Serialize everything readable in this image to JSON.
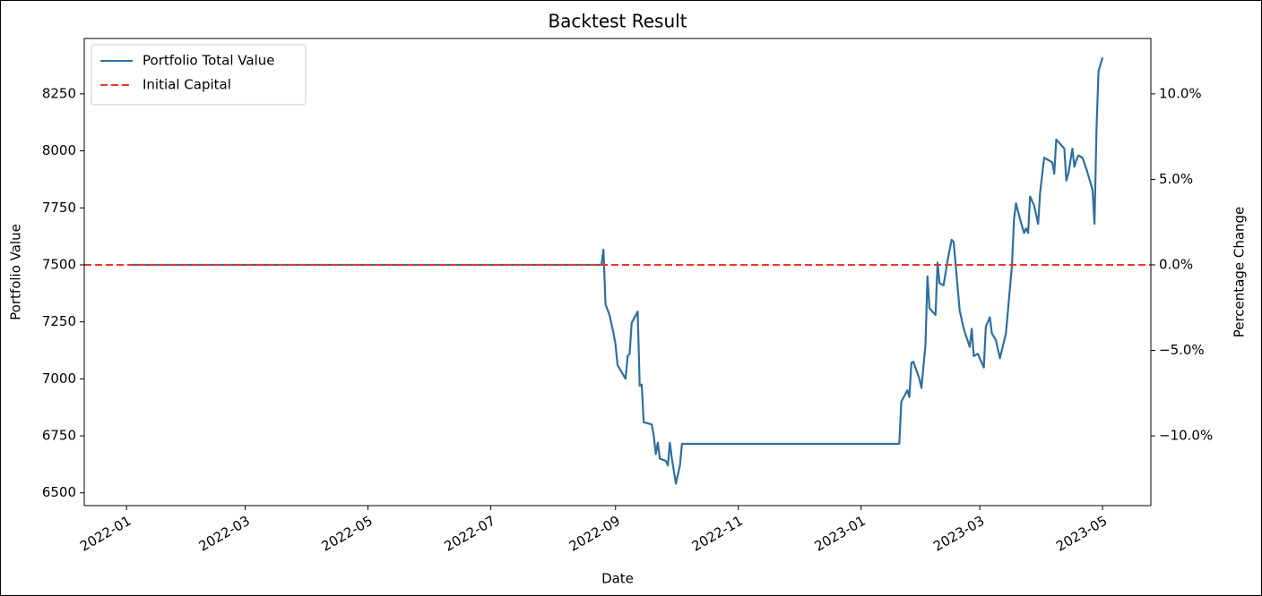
{
  "chart_data": {
    "type": "line",
    "title": "Backtest Result",
    "xlabel": "Date",
    "ylabel": "Portfolio Value",
    "y2label": "Percentage Change",
    "x": [
      "2022-01-03",
      "2022-08-25",
      "2022-08-26",
      "2022-08-27",
      "2022-08-29",
      "2022-08-31",
      "2022-09-01",
      "2022-09-02",
      "2022-09-06",
      "2022-09-07",
      "2022-09-08",
      "2022-09-09",
      "2022-09-12",
      "2022-09-13",
      "2022-09-14",
      "2022-09-15",
      "2022-09-19",
      "2022-09-20",
      "2022-09-21",
      "2022-09-22",
      "2022-09-23",
      "2022-09-26",
      "2022-09-27",
      "2022-09-28",
      "2022-09-29",
      "2022-10-01",
      "2022-10-03",
      "2022-10-04",
      "2023-01-20",
      "2023-01-21",
      "2023-01-24",
      "2023-01-25",
      "2023-01-26",
      "2023-01-27",
      "2023-01-30",
      "2023-01-31",
      "2023-02-02",
      "2023-02-03",
      "2023-02-04",
      "2023-02-07",
      "2023-02-08",
      "2023-02-09",
      "2023-02-11",
      "2023-02-13",
      "2023-02-15",
      "2023-02-16",
      "2023-02-17",
      "2023-02-19",
      "2023-02-21",
      "2023-02-24",
      "2023-02-25",
      "2023-02-26",
      "2023-02-28",
      "2023-03-03",
      "2023-03-04",
      "2023-03-06",
      "2023-03-07",
      "2023-03-09",
      "2023-03-11",
      "2023-03-14",
      "2023-03-17",
      "2023-03-18",
      "2023-03-19",
      "2023-03-21",
      "2023-03-23",
      "2023-03-24",
      "2023-03-25",
      "2023-03-26",
      "2023-03-28",
      "2023-03-30",
      "2023-03-31",
      "2023-04-02",
      "2023-04-06",
      "2023-04-07",
      "2023-04-08",
      "2023-04-12",
      "2023-04-13",
      "2023-04-14",
      "2023-04-16",
      "2023-04-17",
      "2023-04-18",
      "2023-04-19",
      "2023-04-21",
      "2023-04-23",
      "2023-04-26",
      "2023-04-27",
      "2023-04-28",
      "2023-04-29",
      "2023-05-01"
    ],
    "series": [
      {
        "name": "Portfolio Total Value",
        "color": "#2f6f9f",
        "values": [
          7500,
          7500,
          7567,
          7327,
          7280,
          7200,
          7150,
          7060,
          7000,
          7100,
          7110,
          7245,
          7295,
          6970,
          6975,
          6810,
          6800,
          6750,
          6670,
          6720,
          6650,
          6640,
          6620,
          6720,
          6650,
          6540,
          6620,
          6715,
          6715,
          6900,
          6950,
          6920,
          7070,
          7075,
          7000,
          6960,
          7150,
          7450,
          7310,
          7280,
          7510,
          7420,
          7410,
          7520,
          7610,
          7600,
          7500,
          7300,
          7220,
          7140,
          7220,
          7100,
          7110,
          7050,
          7230,
          7270,
          7200,
          7170,
          7090,
          7200,
          7500,
          7700,
          7770,
          7700,
          7640,
          7660,
          7640,
          7800,
          7760,
          7680,
          7820,
          7970,
          7950,
          7900,
          8050,
          8010,
          7870,
          7900,
          8010,
          7930,
          7960,
          7980,
          7970,
          7920,
          7830,
          7680,
          8100,
          8350,
          8410
        ]
      }
    ],
    "hlines": [
      {
        "name": "Initial Capital",
        "value": 7500,
        "color": "#e8392a",
        "style": "dashed"
      }
    ],
    "xlim": [
      "2021-12-11",
      "2023-05-25"
    ],
    "xticks": [
      "2022-01",
      "2022-03",
      "2022-05",
      "2022-07",
      "2022-09",
      "2022-11",
      "2023-01",
      "2023-03",
      "2023-05"
    ],
    "ylim": [
      6444,
      8493
    ],
    "yticks": [
      6500,
      6750,
      7000,
      7250,
      7500,
      7750,
      8000,
      8250
    ],
    "y2lim": [
      -14.08,
      13.24
    ],
    "y2ticks": [
      {
        "value": -10,
        "label": "−10.0%"
      },
      {
        "value": -5,
        "label": "−5.0%"
      },
      {
        "value": 0,
        "label": "0.0%"
      },
      {
        "value": 5,
        "label": "5.0%"
      },
      {
        "value": 10,
        "label": "10.0%"
      }
    ],
    "legend": "upper left",
    "grid": false
  }
}
